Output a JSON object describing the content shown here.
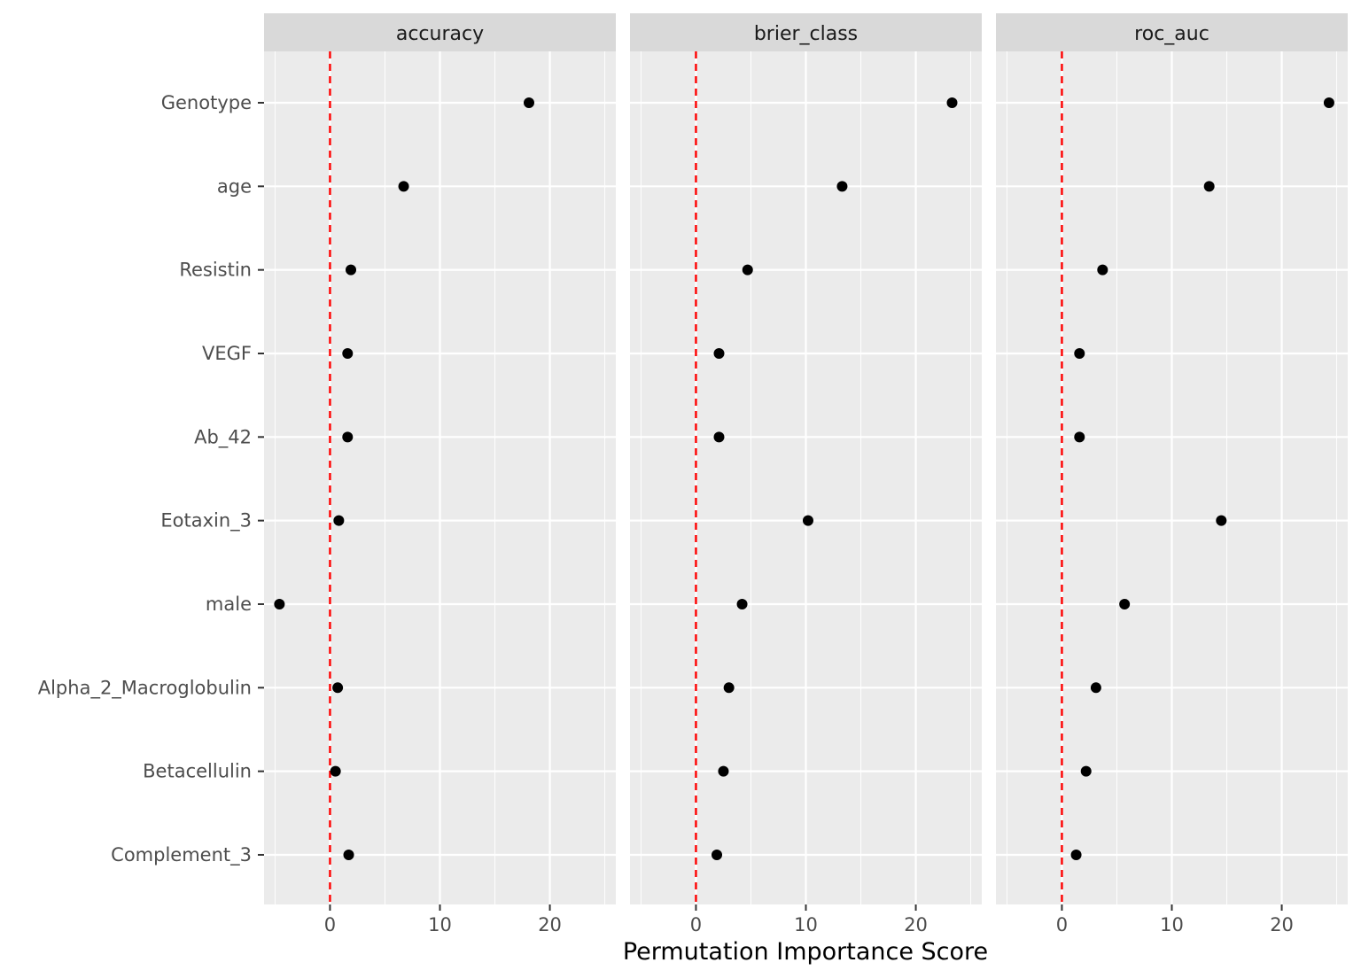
{
  "chart_data": {
    "type": "scatter",
    "xlabel": "Permutation Importance Score",
    "ylabel": "",
    "xlim": [
      -6,
      26
    ],
    "x_ticks": [
      0,
      10,
      20
    ],
    "reference_line": {
      "x": 0,
      "color": "#ff0000",
      "style": "dashed"
    },
    "grid": true,
    "background": "#ebebeb",
    "strip_background": "#d9d9d9",
    "point_color": "#000000",
    "categories": [
      "Genotype",
      "age",
      "Resistin",
      "VEGF",
      "Ab_42",
      "Eotaxin_3",
      "male",
      "Alpha_2_Macroglobulin",
      "Betacellulin",
      "Complement_3"
    ],
    "facets": [
      {
        "name": "accuracy",
        "values": [
          18.1,
          6.7,
          1.9,
          1.6,
          1.6,
          0.8,
          -4.6,
          0.7,
          0.5,
          1.7
        ]
      },
      {
        "name": "brier_class",
        "values": [
          23.3,
          13.3,
          4.7,
          2.1,
          2.1,
          10.2,
          4.2,
          3.0,
          2.5,
          1.9
        ]
      },
      {
        "name": "roc_auc",
        "values": [
          24.3,
          13.4,
          3.7,
          1.6,
          1.6,
          14.5,
          5.7,
          3.1,
          2.2,
          1.3
        ]
      }
    ]
  }
}
